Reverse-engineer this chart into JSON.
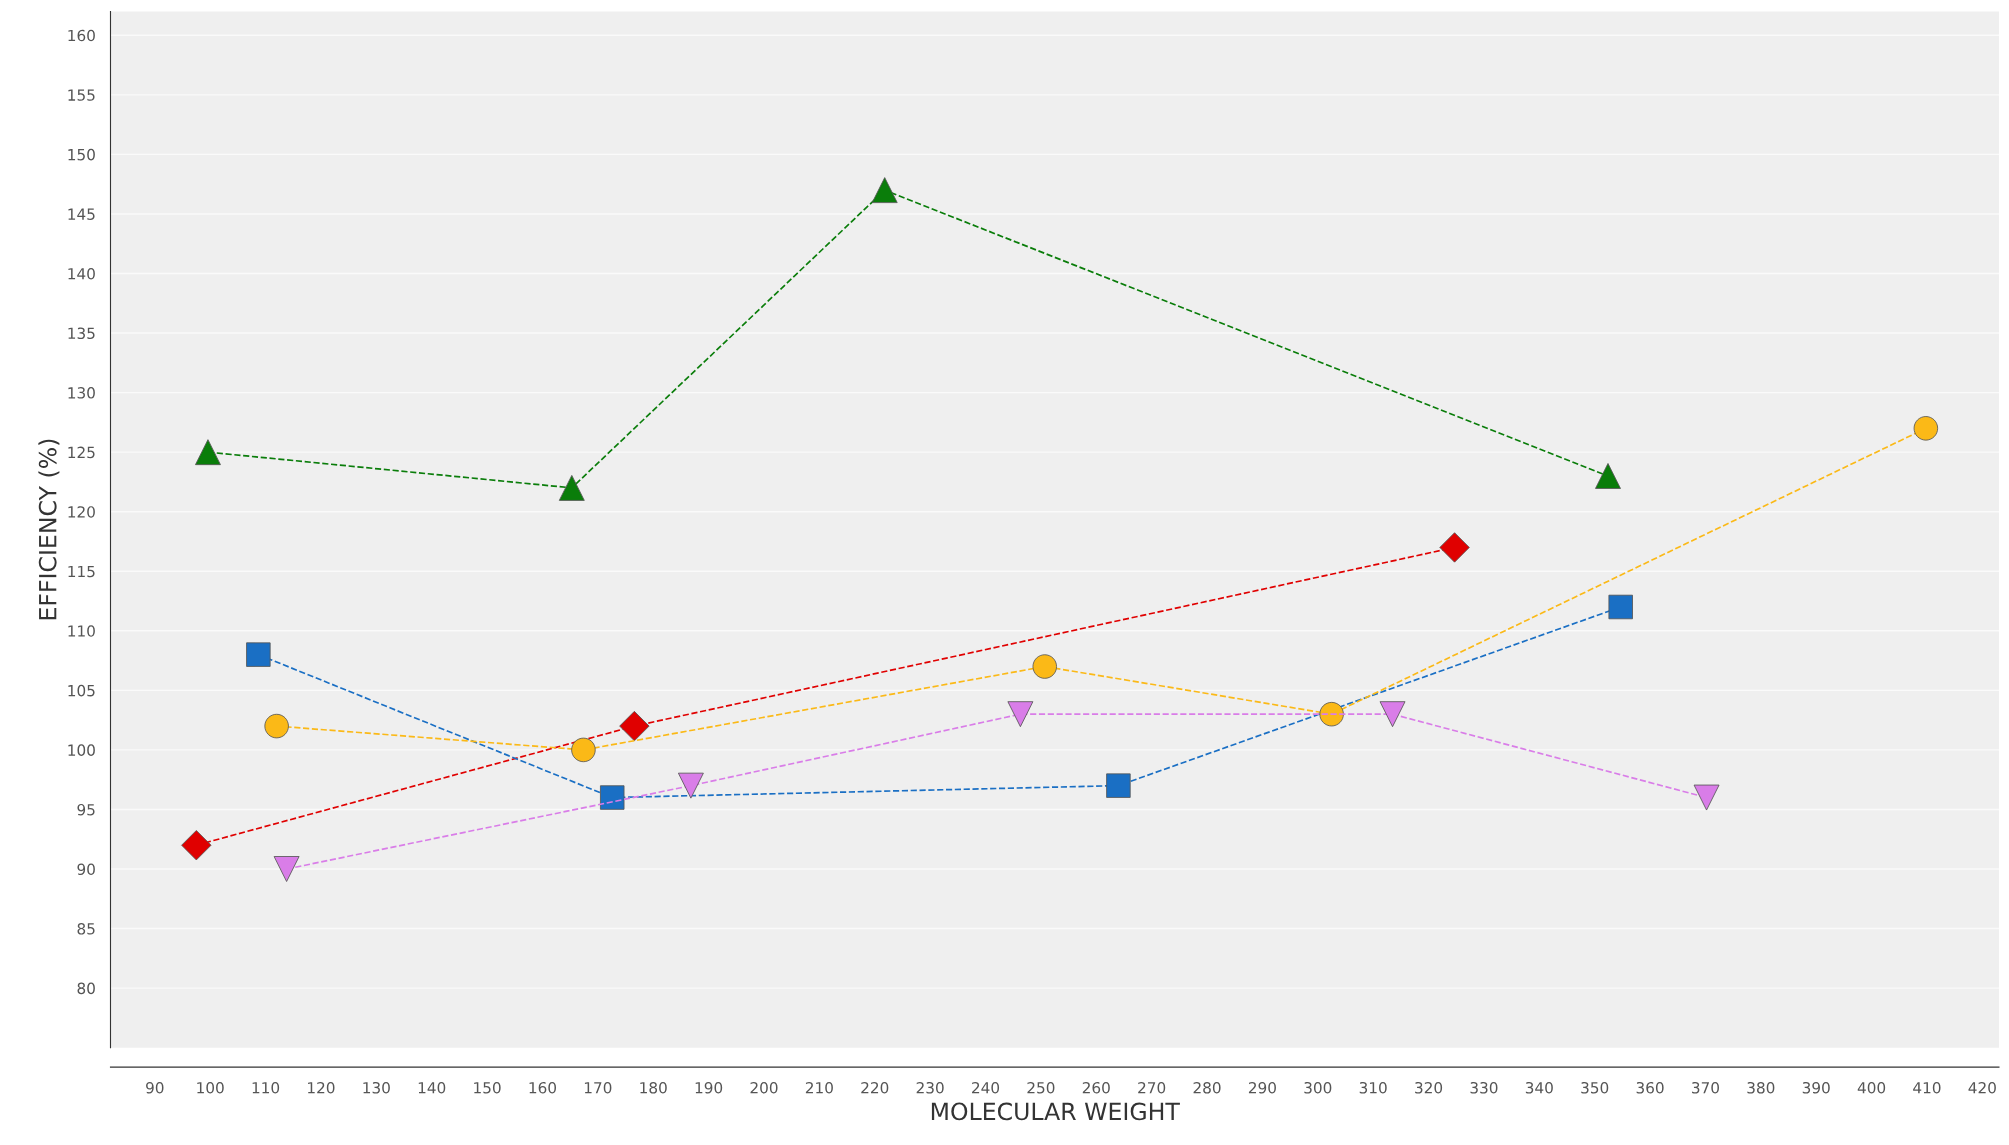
{
  "chart_data": {
    "type": "line",
    "xlabel": "MOLECULAR WEIGHT",
    "ylabel": "EFFICIENCY (%)",
    "xlim": [
      82,
      423
    ],
    "ylim": [
      75,
      162
    ],
    "xticks": [
      90,
      100,
      110,
      120,
      130,
      140,
      150,
      160,
      170,
      180,
      190,
      200,
      210,
      220,
      230,
      240,
      250,
      260,
      270,
      280,
      290,
      300,
      310,
      320,
      330,
      340,
      350,
      360,
      370,
      380,
      390,
      400,
      410,
      420
    ],
    "yticks": [
      80,
      85,
      90,
      95,
      100,
      105,
      110,
      115,
      120,
      125,
      130,
      135,
      140,
      145,
      150,
      155,
      160
    ],
    "grid": "y",
    "line_style": "dashed",
    "series": [
      {
        "color": "#0a7d0a",
        "marker": "triangle",
        "x": [
          99.6,
          165.3,
          221.8,
          352.4
        ],
        "values": [
          125,
          122,
          147,
          123
        ]
      },
      {
        "color": "#e00000",
        "marker": "diamond",
        "x": [
          97.5,
          176.6,
          324.7
        ],
        "values": [
          92,
          102,
          117
        ]
      },
      {
        "color": "#1a6fc4",
        "marker": "square",
        "x": [
          108.7,
          172.6,
          264,
          354.7
        ],
        "values": [
          108,
          96,
          97,
          112
        ]
      },
      {
        "color": "#fbb917",
        "marker": "circle",
        "x": [
          112,
          167.4,
          250.7,
          302.5,
          409.8
        ],
        "values": [
          102,
          100,
          107,
          103,
          127
        ]
      },
      {
        "color": "#d97de8",
        "marker": "triangle_down",
        "x": [
          113.8,
          186.8,
          246.3,
          313.5,
          370.2
        ],
        "values": [
          90,
          97,
          103,
          103,
          96
        ]
      }
    ]
  }
}
